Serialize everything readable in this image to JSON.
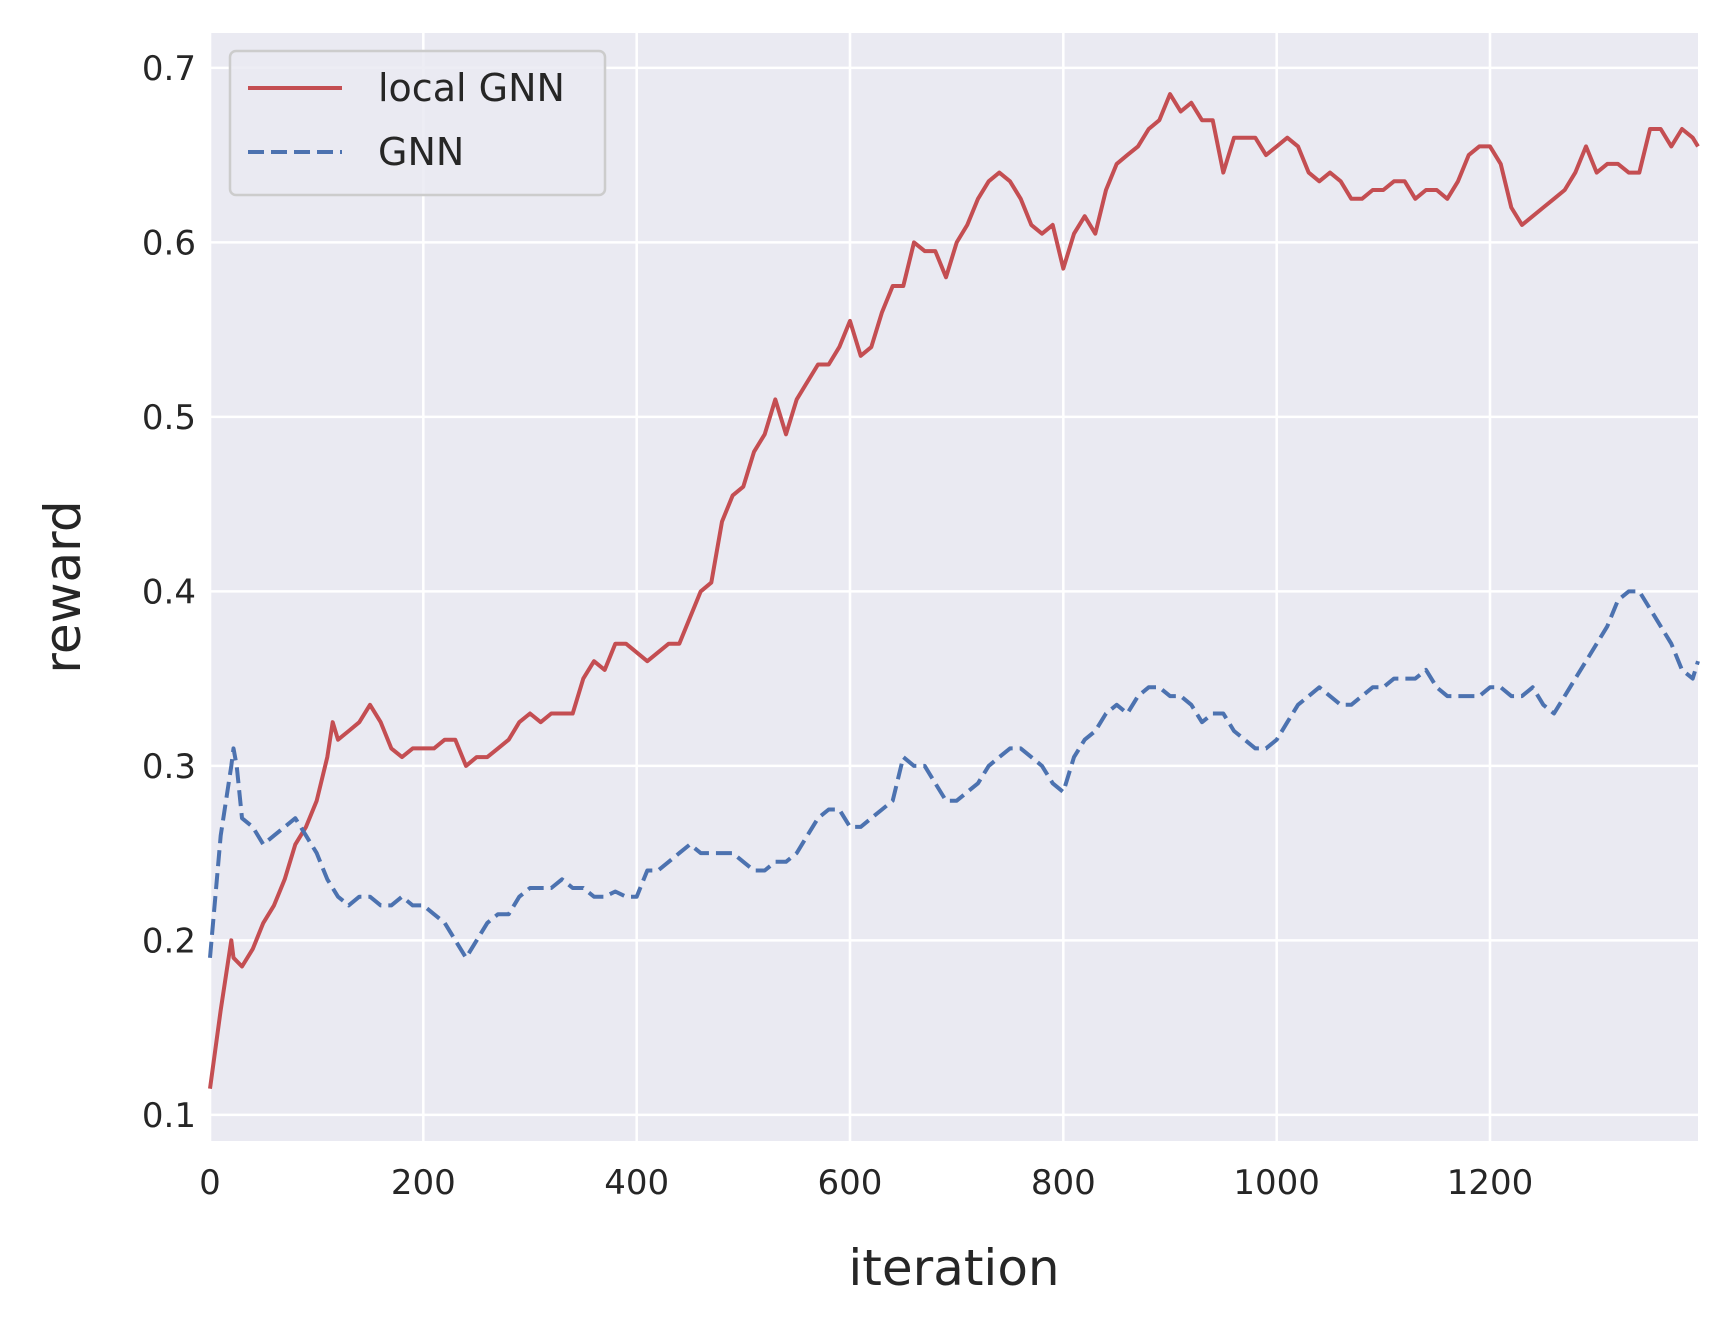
{
  "chart_data": {
    "type": "line",
    "xlabel": "iteration",
    "ylabel": "reward",
    "xlim": [
      0,
      1395
    ],
    "ylim": [
      0.085,
      0.72
    ],
    "xticks": [
      0,
      200,
      400,
      600,
      800,
      1000,
      1200
    ],
    "yticks": [
      0.1,
      0.2,
      0.3,
      0.4,
      0.5,
      0.6,
      0.7
    ],
    "xtick_labels": [
      "0",
      "200",
      "400",
      "600",
      "800",
      "1000",
      "1200"
    ],
    "ytick_labels": [
      "0.1",
      "0.2",
      "0.3",
      "0.4",
      "0.5",
      "0.6",
      "0.7"
    ],
    "grid": true,
    "background": "#eaeaf2",
    "legend_position": "top-left",
    "series": [
      {
        "name": "local GNN",
        "color": "#c44e52",
        "style": "solid",
        "x": [
          0,
          10,
          20,
          22,
          30,
          40,
          50,
          60,
          70,
          80,
          90,
          100,
          110,
          115,
          120,
          130,
          140,
          150,
          160,
          170,
          180,
          190,
          200,
          210,
          220,
          230,
          240,
          250,
          260,
          270,
          280,
          290,
          300,
          310,
          320,
          330,
          340,
          350,
          360,
          370,
          380,
          390,
          400,
          410,
          420,
          430,
          440,
          450,
          460,
          470,
          480,
          490,
          500,
          510,
          520,
          530,
          540,
          550,
          560,
          570,
          580,
          590,
          600,
          610,
          620,
          630,
          640,
          650,
          660,
          670,
          680,
          690,
          700,
          710,
          720,
          730,
          740,
          750,
          760,
          770,
          780,
          790,
          800,
          810,
          820,
          830,
          840,
          850,
          860,
          870,
          880,
          890,
          900,
          910,
          920,
          930,
          940,
          950,
          960,
          970,
          980,
          990,
          1000,
          1010,
          1020,
          1030,
          1040,
          1050,
          1060,
          1070,
          1080,
          1090,
          1100,
          1110,
          1120,
          1130,
          1140,
          1150,
          1160,
          1170,
          1180,
          1190,
          1200,
          1210,
          1220,
          1230,
          1240,
          1250,
          1260,
          1270,
          1280,
          1290,
          1300,
          1310,
          1320,
          1330,
          1340,
          1350,
          1360,
          1370,
          1380,
          1390,
          1395
        ],
        "y": [
          0.115,
          0.16,
          0.2,
          0.19,
          0.185,
          0.195,
          0.21,
          0.22,
          0.235,
          0.255,
          0.265,
          0.28,
          0.305,
          0.325,
          0.315,
          0.32,
          0.325,
          0.335,
          0.325,
          0.31,
          0.305,
          0.31,
          0.31,
          0.31,
          0.315,
          0.315,
          0.3,
          0.305,
          0.305,
          0.31,
          0.315,
          0.325,
          0.33,
          0.325,
          0.33,
          0.33,
          0.33,
          0.35,
          0.36,
          0.355,
          0.37,
          0.37,
          0.365,
          0.36,
          0.365,
          0.37,
          0.37,
          0.385,
          0.4,
          0.405,
          0.44,
          0.455,
          0.46,
          0.48,
          0.49,
          0.51,
          0.49,
          0.51,
          0.52,
          0.53,
          0.53,
          0.54,
          0.555,
          0.535,
          0.54,
          0.56,
          0.575,
          0.575,
          0.6,
          0.595,
          0.595,
          0.58,
          0.6,
          0.61,
          0.625,
          0.635,
          0.64,
          0.635,
          0.625,
          0.61,
          0.605,
          0.61,
          0.585,
          0.605,
          0.615,
          0.605,
          0.63,
          0.645,
          0.65,
          0.655,
          0.665,
          0.67,
          0.685,
          0.675,
          0.68,
          0.67,
          0.67,
          0.64,
          0.66,
          0.66,
          0.66,
          0.65,
          0.655,
          0.66,
          0.655,
          0.64,
          0.635,
          0.64,
          0.635,
          0.625,
          0.625,
          0.63,
          0.63,
          0.635,
          0.635,
          0.625,
          0.63,
          0.63,
          0.625,
          0.635,
          0.65,
          0.655,
          0.655,
          0.645,
          0.62,
          0.61,
          0.615,
          0.62,
          0.625,
          0.63,
          0.64,
          0.655,
          0.64,
          0.645,
          0.645,
          0.64,
          0.64,
          0.665,
          0.665,
          0.655,
          0.665,
          0.66,
          0.655
        ]
      },
      {
        "name": "GNN",
        "color": "#4c72b0",
        "style": "dashed",
        "x": [
          0,
          10,
          20,
          22,
          25,
          30,
          40,
          50,
          60,
          70,
          80,
          90,
          100,
          110,
          120,
          130,
          140,
          150,
          160,
          170,
          180,
          190,
          200,
          210,
          220,
          230,
          240,
          250,
          260,
          270,
          280,
          290,
          300,
          310,
          320,
          330,
          340,
          350,
          360,
          370,
          380,
          390,
          400,
          410,
          420,
          430,
          440,
          450,
          460,
          470,
          480,
          490,
          500,
          510,
          520,
          530,
          540,
          550,
          560,
          570,
          580,
          590,
          600,
          610,
          620,
          630,
          640,
          650,
          660,
          670,
          680,
          690,
          700,
          710,
          720,
          730,
          740,
          750,
          760,
          770,
          780,
          790,
          800,
          810,
          820,
          830,
          840,
          850,
          860,
          870,
          880,
          890,
          900,
          910,
          920,
          930,
          940,
          950,
          960,
          970,
          980,
          990,
          1000,
          1010,
          1020,
          1030,
          1040,
          1050,
          1060,
          1070,
          1080,
          1090,
          1100,
          1110,
          1120,
          1130,
          1140,
          1150,
          1160,
          1170,
          1180,
          1190,
          1200,
          1210,
          1220,
          1230,
          1240,
          1250,
          1260,
          1270,
          1280,
          1290,
          1300,
          1310,
          1320,
          1330,
          1340,
          1350,
          1360,
          1370,
          1380,
          1390,
          1395
        ],
        "y": [
          0.19,
          0.26,
          0.3,
          0.31,
          0.3,
          0.27,
          0.265,
          0.255,
          0.26,
          0.265,
          0.27,
          0.26,
          0.25,
          0.235,
          0.225,
          0.22,
          0.225,
          0.225,
          0.22,
          0.22,
          0.225,
          0.22,
          0.22,
          0.215,
          0.21,
          0.2,
          0.19,
          0.2,
          0.21,
          0.215,
          0.215,
          0.225,
          0.23,
          0.23,
          0.23,
          0.235,
          0.23,
          0.23,
          0.225,
          0.225,
          0.228,
          0.225,
          0.225,
          0.24,
          0.24,
          0.245,
          0.25,
          0.255,
          0.25,
          0.25,
          0.25,
          0.25,
          0.245,
          0.24,
          0.24,
          0.245,
          0.245,
          0.25,
          0.26,
          0.27,
          0.275,
          0.275,
          0.265,
          0.265,
          0.27,
          0.275,
          0.28,
          0.305,
          0.3,
          0.3,
          0.29,
          0.28,
          0.28,
          0.285,
          0.29,
          0.3,
          0.305,
          0.31,
          0.31,
          0.305,
          0.3,
          0.29,
          0.285,
          0.305,
          0.315,
          0.32,
          0.33,
          0.335,
          0.33,
          0.34,
          0.345,
          0.345,
          0.34,
          0.34,
          0.335,
          0.325,
          0.33,
          0.33,
          0.32,
          0.315,
          0.31,
          0.31,
          0.315,
          0.325,
          0.335,
          0.34,
          0.345,
          0.34,
          0.335,
          0.335,
          0.34,
          0.345,
          0.345,
          0.35,
          0.35,
          0.35,
          0.355,
          0.345,
          0.34,
          0.34,
          0.34,
          0.34,
          0.345,
          0.345,
          0.34,
          0.34,
          0.345,
          0.335,
          0.33,
          0.34,
          0.35,
          0.36,
          0.37,
          0.38,
          0.395,
          0.4,
          0.4,
          0.39,
          0.38,
          0.37,
          0.355,
          0.35,
          0.36
        ]
      }
    ]
  }
}
